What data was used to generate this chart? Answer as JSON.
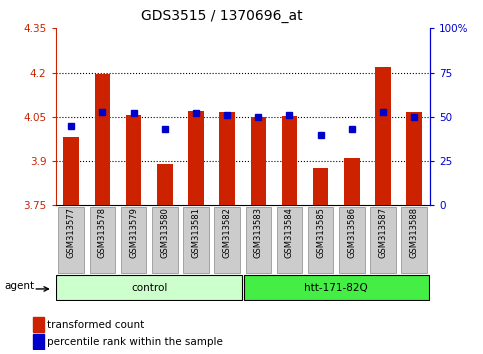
{
  "title": "GDS3515 / 1370696_at",
  "samples": [
    "GSM313577",
    "GSM313578",
    "GSM313579",
    "GSM313580",
    "GSM313581",
    "GSM313582",
    "GSM313583",
    "GSM313584",
    "GSM313585",
    "GSM313586",
    "GSM313587",
    "GSM313588"
  ],
  "bar_values": [
    3.98,
    4.195,
    4.055,
    3.89,
    4.07,
    4.065,
    4.048,
    4.052,
    3.875,
    3.91,
    4.22,
    4.065
  ],
  "percentile_values": [
    45,
    53,
    52,
    43,
    52,
    51,
    50,
    51,
    40,
    43,
    53,
    50
  ],
  "ylim_left": [
    3.75,
    4.35
  ],
  "ylim_right": [
    0,
    100
  ],
  "yticks_left": [
    3.75,
    3.9,
    4.05,
    4.2,
    4.35
  ],
  "yticks_right": [
    0,
    25,
    50,
    75,
    100
  ],
  "ytick_labels_left": [
    "3.75",
    "3.9",
    "4.05",
    "4.2",
    "4.35"
  ],
  "ytick_labels_right": [
    "0",
    "25",
    "50",
    "75",
    "100%"
  ],
  "hlines": [
    3.9,
    4.05,
    4.2
  ],
  "bar_color": "#cc2200",
  "dot_color": "#0000cc",
  "bar_bottom": 3.75,
  "groups": [
    {
      "label": "control",
      "start": 0,
      "end": 6,
      "color": "#ccffcc"
    },
    {
      "label": "htt-171-82Q",
      "start": 6,
      "end": 12,
      "color": "#44ee44"
    }
  ],
  "agent_label": "agent",
  "legend_bar_label": "transformed count",
  "legend_dot_label": "percentile rank within the sample",
  "title_fontsize": 10,
  "tick_fontsize": 7.5,
  "label_fontsize": 7.5,
  "xtick_fontsize": 6,
  "bg_xticklabel": "#cccccc",
  "spine_color": "#888888"
}
